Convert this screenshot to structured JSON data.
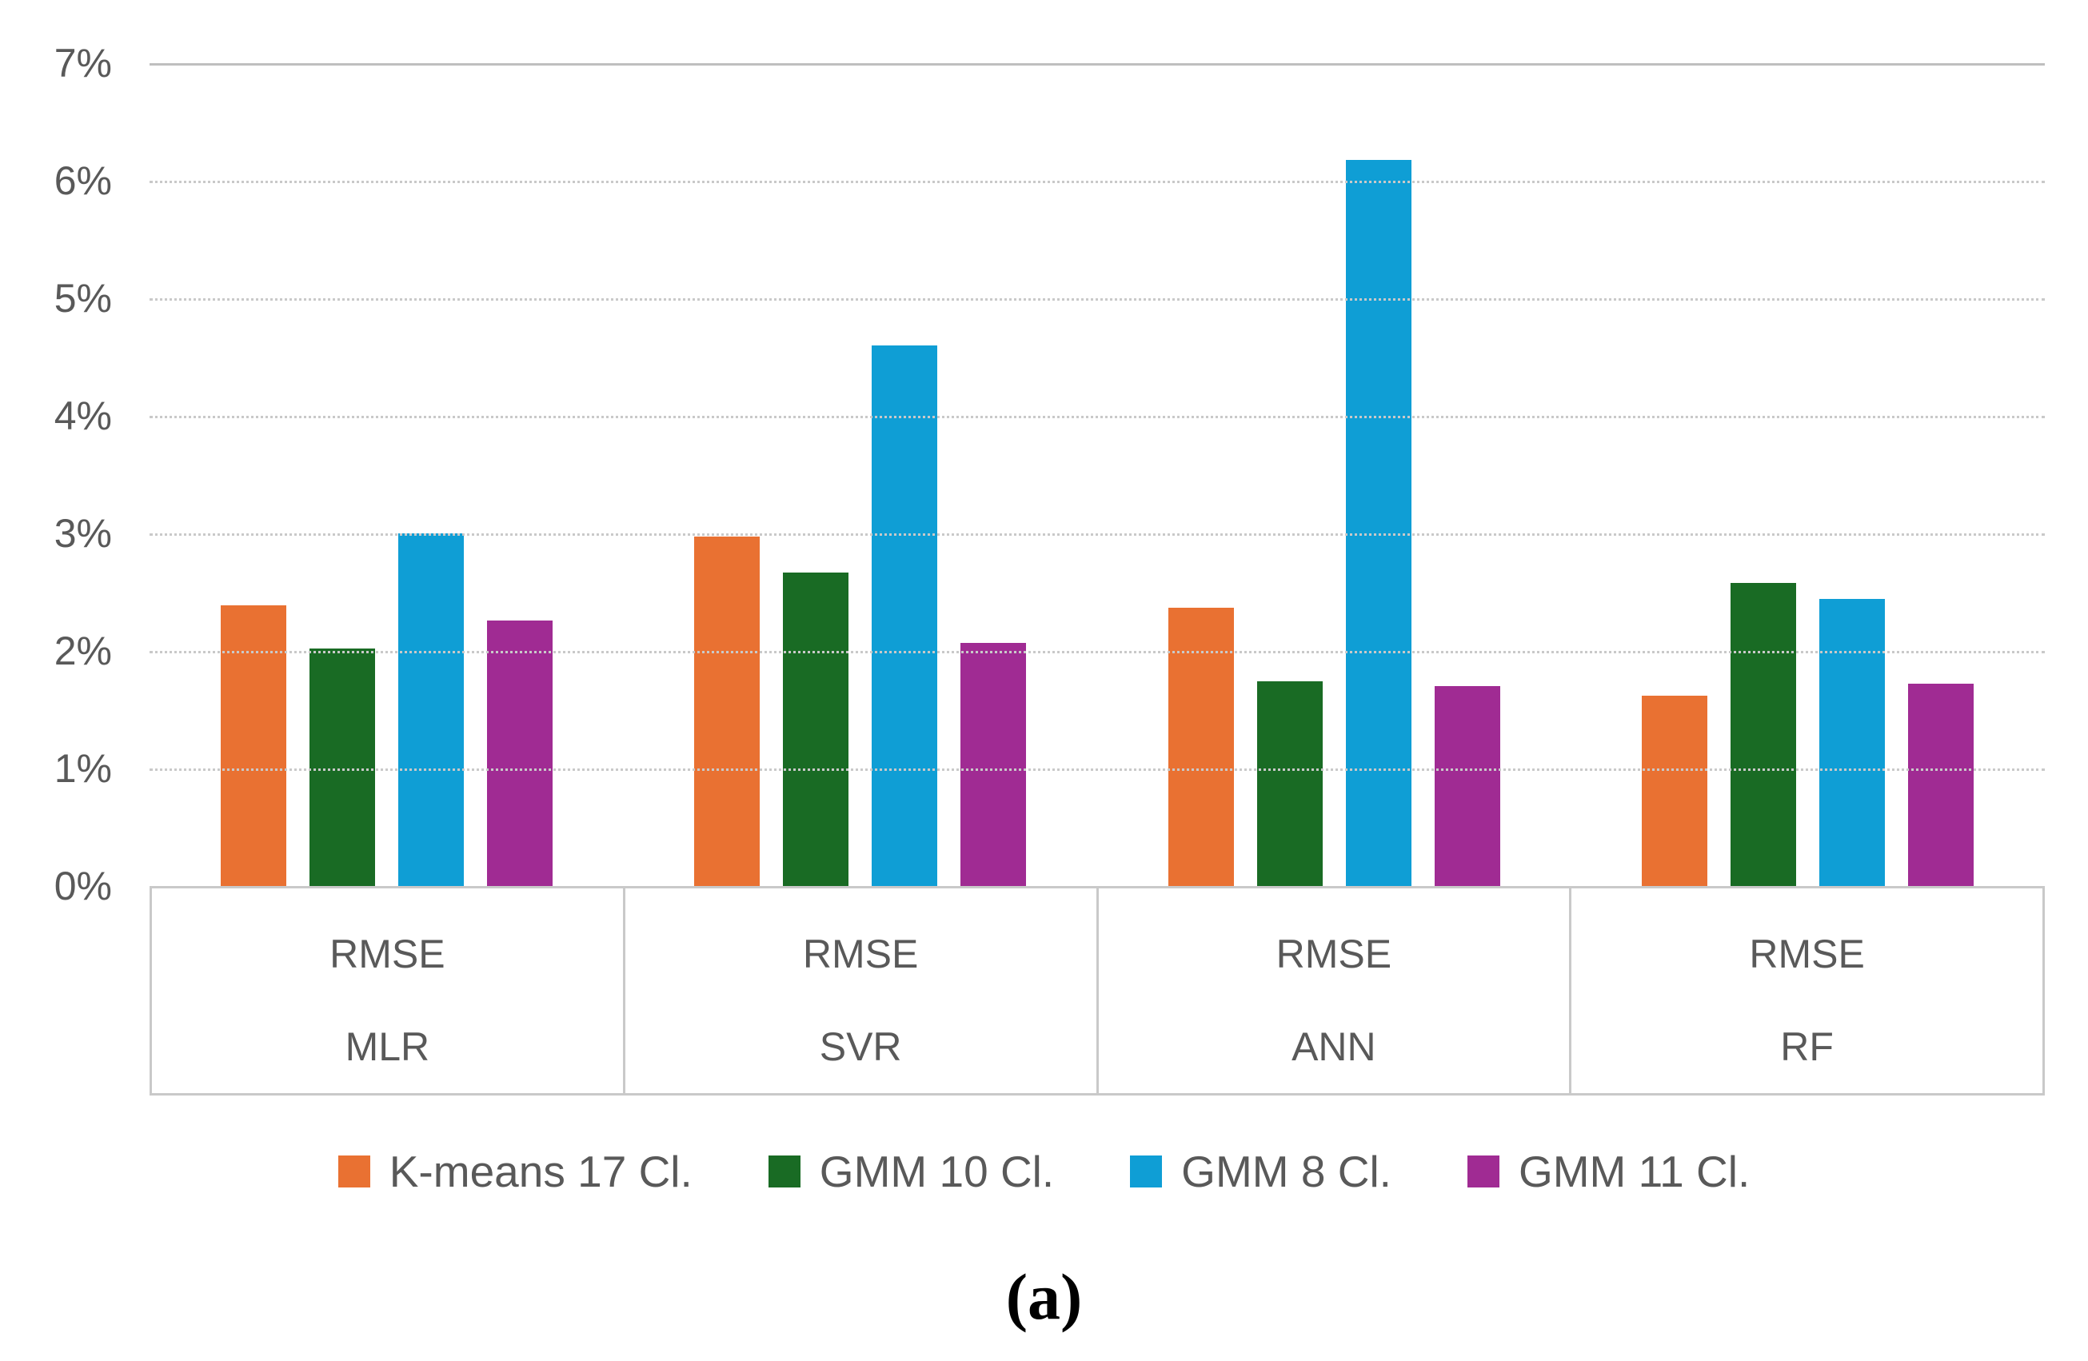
{
  "figure": {
    "caption": "(a)"
  },
  "colors": {
    "axis_text": "#595959",
    "gridline": "#c9c9c9",
    "gridline_top": "#bfbfbf",
    "table_border": "#c9c9c9",
    "background": "#ffffff"
  },
  "chart_data": {
    "type": "bar",
    "title": "",
    "xlabel": "",
    "ylabel": "",
    "ylim": [
      0,
      7
    ],
    "grid": true,
    "gridline_style": "dotted",
    "legend_position": "bottom",
    "y_ticks": [
      "7%",
      "6%",
      "5%",
      "4%",
      "3%",
      "2%",
      "1%",
      "0%"
    ],
    "categories": [
      {
        "metric": "RMSE",
        "model": "MLR"
      },
      {
        "metric": "RMSE",
        "model": "SVR"
      },
      {
        "metric": "RMSE",
        "model": "ANN"
      },
      {
        "metric": "RMSE",
        "model": "RF"
      }
    ],
    "series": [
      {
        "name": "K-means 17 Cl.",
        "color": "#E97132",
        "values": [
          2.39,
          2.97,
          2.37,
          1.62
        ]
      },
      {
        "name": "GMM 10 Cl.",
        "color": "#196B24",
        "values": [
          2.02,
          2.67,
          1.74,
          2.58
        ]
      },
      {
        "name": "GMM 8 Cl.",
        "color": "#0F9ED5",
        "values": [
          3.0,
          4.6,
          6.18,
          2.44
        ]
      },
      {
        "name": "GMM 11 Cl.",
        "color": "#A02B93",
        "values": [
          2.26,
          2.07,
          1.7,
          1.72
        ]
      }
    ],
    "values_unit": "percent"
  }
}
